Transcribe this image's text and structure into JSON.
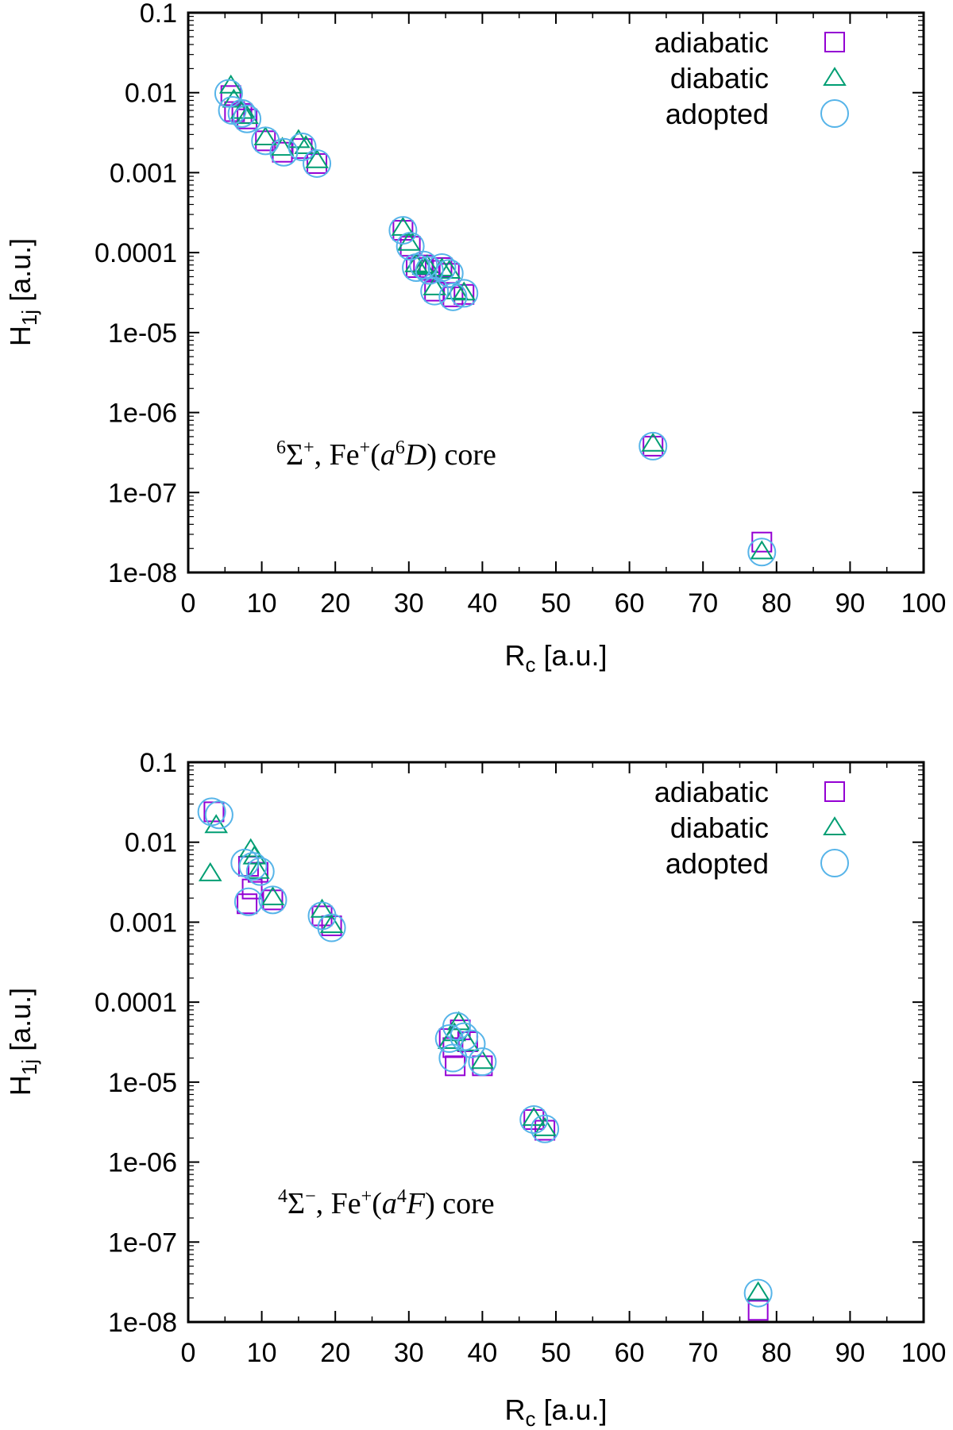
{
  "colors": {
    "adiabatic": "#9400d3",
    "diabatic": "#009e73",
    "adopted": "#56b4e9",
    "axis": "#000000"
  },
  "chart_data": [
    {
      "type": "scatter",
      "xlim": [
        0,
        100
      ],
      "ylim": [
        1e-08,
        0.1
      ],
      "yscale": "log",
      "xticks": [
        0,
        10,
        20,
        30,
        40,
        50,
        60,
        70,
        80,
        90,
        100
      ],
      "xtick_labels": [
        "0",
        "10",
        "20",
        "30",
        "40",
        "50",
        "60",
        "70",
        "80",
        "90",
        "100"
      ],
      "yticks": [
        0.1,
        0.01,
        0.001,
        0.0001,
        1e-05,
        1e-06,
        1e-07,
        1e-08
      ],
      "ytick_labels": [
        "0.1",
        "0.01",
        "0.001",
        "0.0001",
        "1e-05",
        "1e-06",
        "1e-07",
        "1e-08"
      ],
      "xlabel": {
        "main": "R",
        "sub": "c",
        "unit": " [a.u.]"
      },
      "ylabel": {
        "main": "H",
        "sub": "1j",
        "unit": " [a.u.]"
      },
      "legend_position": "top-right",
      "annotation": {
        "sup1": "6",
        "sigma": "Σ",
        "sup2": "+",
        "mid": ", Fe",
        "sup3": "+",
        "open": "(",
        "a": "a",
        "sup4": "6",
        "state": "D",
        "close": ") core"
      },
      "series": [
        {
          "name": "adiabatic",
          "marker": "square",
          "x": [
            5.8,
            6.3,
            7.3,
            8.0,
            10.5,
            12.8,
            15.5,
            17.5,
            29.2,
            30.2,
            31.0,
            32.0,
            32.8,
            33.5,
            34.5,
            35.5,
            36.0,
            37.5,
            63.2,
            78.0
          ],
          "y": [
            0.0092,
            0.0058,
            0.0055,
            0.0047,
            0.0025,
            0.0018,
            0.002,
            0.0013,
            0.00019,
            0.00012,
            6.5e-05,
            7e-05,
            6e-05,
            3.3e-05,
            6.5e-05,
            5.5e-05,
            2.8e-05,
            3e-05,
            3.8e-07,
            2.4e-08
          ]
        },
        {
          "name": "diabatic",
          "marker": "triangle",
          "x": [
            5.8,
            6.2,
            7.3,
            8.0,
            10.5,
            12.8,
            15.0,
            16.0,
            17.5,
            29.2,
            30.0,
            31.0,
            32.0,
            32.5,
            33.5,
            34.5,
            35.5,
            36.5,
            37.5,
            63.2,
            78.0
          ],
          "y": [
            0.012,
            0.008,
            0.0058,
            0.005,
            0.0027,
            0.002,
            0.0025,
            0.0021,
            0.0014,
            0.0002,
            0.00013,
            7e-05,
            6.5e-05,
            6.8e-05,
            3.6e-05,
            6.2e-05,
            5.8e-05,
            3.2e-05,
            3.1e-05,
            4e-07,
            1.8e-08
          ]
        },
        {
          "name": "adopted",
          "marker": "circle",
          "x": [
            5.5,
            6.0,
            7.3,
            8.0,
            10.5,
            13.0,
            15.5,
            17.5,
            29.2,
            30.2,
            31.0,
            32.0,
            32.8,
            33.5,
            34.5,
            35.5,
            36.0,
            37.5,
            63.2,
            78.0
          ],
          "y": [
            0.0098,
            0.006,
            0.0055,
            0.0047,
            0.0025,
            0.0018,
            0.0021,
            0.0013,
            0.00019,
            0.00012,
            6.5e-05,
            7e-05,
            6e-05,
            3.3e-05,
            6.5e-05,
            5.5e-05,
            2.8e-05,
            3.1e-05,
            3.8e-07,
            1.8e-08
          ]
        }
      ]
    },
    {
      "type": "scatter",
      "xlim": [
        0,
        100
      ],
      "ylim": [
        1e-08,
        0.1
      ],
      "yscale": "log",
      "xticks": [
        0,
        10,
        20,
        30,
        40,
        50,
        60,
        70,
        80,
        90,
        100
      ],
      "xtick_labels": [
        "0",
        "10",
        "20",
        "30",
        "40",
        "50",
        "60",
        "70",
        "80",
        "90",
        "100"
      ],
      "yticks": [
        0.1,
        0.01,
        0.001,
        0.0001,
        1e-05,
        1e-06,
        1e-07,
        1e-08
      ],
      "ytick_labels": [
        "0.1",
        "0.01",
        "0.001",
        "0.0001",
        "1e-05",
        "1e-06",
        "1e-07",
        "1e-08"
      ],
      "xlabel": {
        "main": "R",
        "sub": "c",
        "unit": " [a.u.]"
      },
      "ylabel": {
        "main": "H",
        "sub": "1j",
        "unit": " [a.u.]"
      },
      "legend_position": "top-right",
      "annotation": {
        "sup1": "4",
        "sigma": "Σ",
        "sup2": "−",
        "mid": ", Fe",
        "sup3": "+",
        "open": "(",
        "a": "a",
        "sup4": "4",
        "state": "F",
        "close": ") core"
      },
      "series": [
        {
          "name": "adiabatic",
          "marker": "square",
          "x": [
            3.5,
            8.2,
            8.7,
            8.0,
            9.5,
            11.5,
            18.2,
            19.5,
            35.5,
            36.0,
            36.3,
            37.0,
            38.0,
            40.0,
            47.0,
            48.5,
            77.5
          ],
          "y": [
            0.024,
            0.005,
            0.0026,
            0.0017,
            0.0042,
            0.0019,
            0.0012,
            0.0009,
            3.5e-05,
            2.7e-05,
            1.6e-05,
            4.5e-05,
            3.2e-05,
            1.6e-05,
            3.4e-06,
            2.5e-06,
            1.4e-08
          ]
        },
        {
          "name": "diabatic",
          "marker": "triangle",
          "x": [
            3.0,
            3.8,
            8.5,
            9.0,
            9.5,
            11.5,
            18.2,
            19.5,
            35.5,
            36.2,
            36.8,
            38.0,
            40.0,
            47.0,
            48.5,
            77.5
          ],
          "y": [
            0.004,
            0.016,
            0.008,
            0.0065,
            0.0043,
            0.002,
            0.0014,
            0.0009,
            3.2e-05,
            4e-05,
            5.5e-05,
            3e-05,
            1.8e-05,
            3.5e-06,
            2.6e-06,
            2.3e-08
          ]
        },
        {
          "name": "adopted",
          "marker": "circle",
          "x": [
            3.2,
            4.2,
            7.7,
            8.2,
            8.8,
            9.8,
            11.5,
            18.2,
            19.5,
            35.5,
            36.0,
            36.5,
            37.5,
            38.5,
            40.0,
            47.0,
            48.5,
            77.5
          ],
          "y": [
            0.024,
            0.022,
            0.0055,
            0.0018,
            0.005,
            0.0043,
            0.0019,
            0.0012,
            0.00085,
            3.5e-05,
            2e-05,
            5e-05,
            3.7e-05,
            3e-05,
            1.8e-05,
            3.4e-06,
            2.6e-06,
            2.3e-08
          ]
        }
      ]
    }
  ]
}
